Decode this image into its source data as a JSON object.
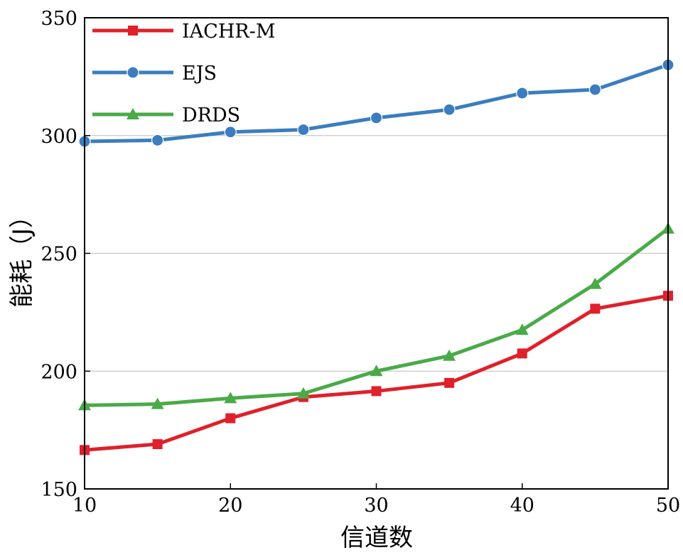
{
  "chart_data": {
    "type": "line",
    "title": "",
    "xlabel": "信道数",
    "ylabel": "能耗（J）",
    "x": [
      10,
      15,
      20,
      25,
      30,
      35,
      40,
      45,
      50
    ],
    "xlim": [
      10,
      50
    ],
    "ylim": [
      150,
      350
    ],
    "xticks": [
      10,
      20,
      30,
      40,
      50
    ],
    "yticks": [
      150,
      200,
      250,
      300,
      350
    ],
    "grid": "horizontal",
    "legend_position": "top-left",
    "series": [
      {
        "name": "IACHR-M",
        "color": "#e0202a",
        "marker": "square",
        "values": [
          166.5,
          169,
          180,
          189,
          191.5,
          195,
          207.5,
          226.5,
          232
        ]
      },
      {
        "name": "EJS",
        "color": "#3b7dbf",
        "marker": "circle",
        "values": [
          297.5,
          298,
          301.5,
          302.5,
          307.5,
          311,
          318,
          319.5,
          330
        ]
      },
      {
        "name": "DRDS",
        "color": "#4aaa48",
        "marker": "triangle",
        "values": [
          185.5,
          186,
          188.5,
          190.5,
          200,
          206.5,
          217.5,
          237,
          260.5
        ]
      }
    ]
  }
}
